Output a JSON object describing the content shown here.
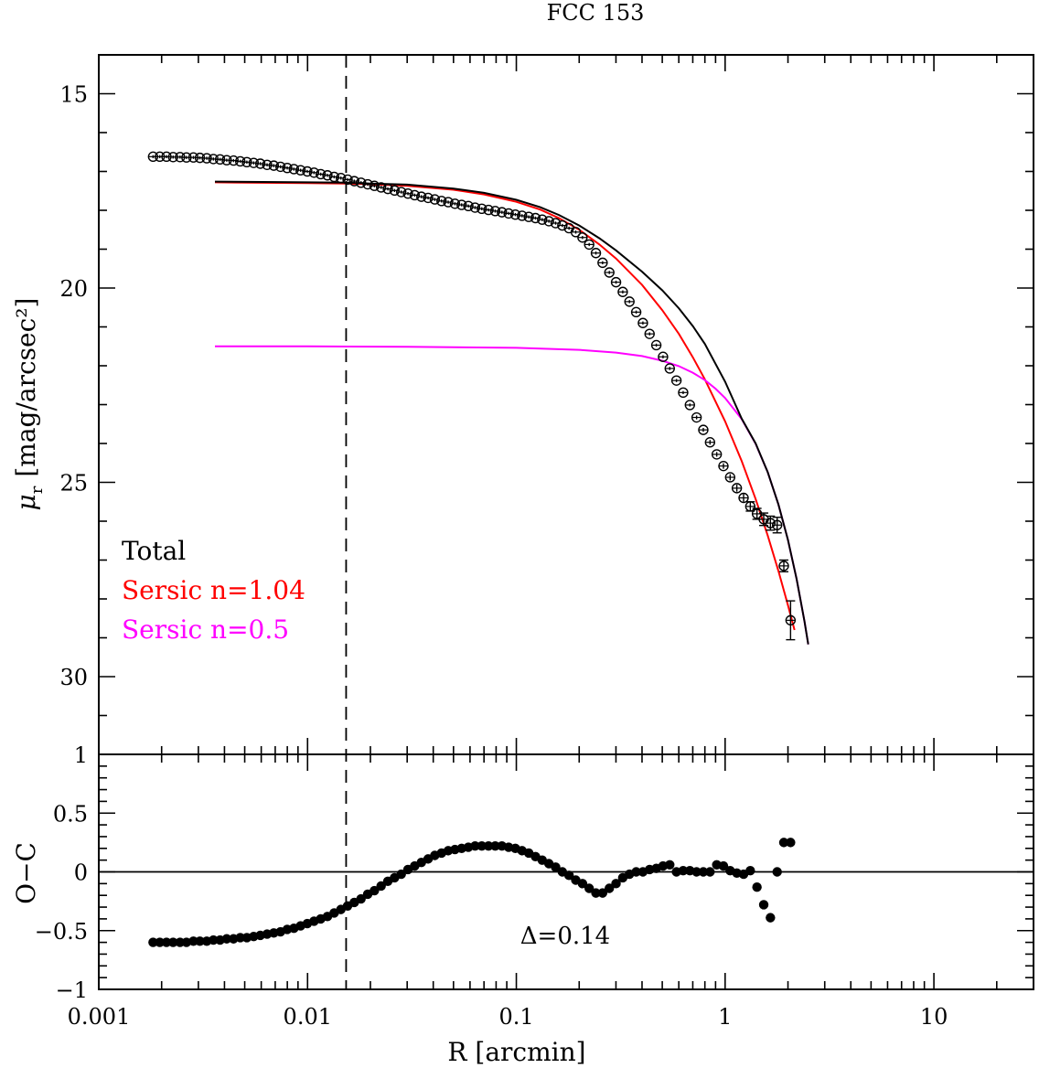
{
  "chart_data": [
    {
      "type": "scatter",
      "title": "FCC 153",
      "xlabel": "R [arcmin]",
      "ylabel": "μ_r [mag/arcsec²]",
      "ylabel_symbol": "μ",
      "ylabel_subscript": "r",
      "ylabel_units": "[mag/arcsec²]",
      "xscale": "log",
      "xlim": [
        0.001,
        30
      ],
      "ylim": [
        32,
        14
      ],
      "y_inverted": true,
      "xtick_labels": [
        "0.001",
        "0.01",
        "0.1",
        "1",
        "10"
      ],
      "ytick_labels": [
        "15",
        "20",
        "25",
        "30"
      ],
      "vline_x": 0.0153,
      "legend": [
        {
          "label": "Total",
          "color": "#000000"
        },
        {
          "label": "Sersic n=1.04",
          "color": "#ff0000"
        },
        {
          "label": "Sersic n=0.5",
          "color": "#ff00ff"
        }
      ],
      "legend_placement": "lower-left",
      "series": [
        {
          "name": "observed profile",
          "marker": "open-circle",
          "color": "#000000",
          "x": [
            0.00182,
            0.00196,
            0.00211,
            0.00227,
            0.00245,
            0.00263,
            0.00284,
            0.00305,
            0.00329,
            0.00354,
            0.00381,
            0.0041,
            0.00442,
            0.00476,
            0.00512,
            0.00552,
            0.00594,
            0.0064,
            0.00689,
            0.00742,
            0.00799,
            0.0086,
            0.00926,
            0.00997,
            0.01074,
            0.01156,
            0.01245,
            0.01341,
            0.01444,
            0.01555,
            0.01674,
            0.01803,
            0.01941,
            0.0209,
            0.02251,
            0.02424,
            0.0261,
            0.0281,
            0.03026,
            0.03259,
            0.03509,
            0.03779,
            0.04069,
            0.04382,
            0.04718,
            0.05081,
            0.05471,
            0.05892,
            0.06344,
            0.06832,
            0.07357,
            0.07922,
            0.08531,
            0.09186,
            0.09892,
            0.1065,
            0.1147,
            0.1235,
            0.133,
            0.1432,
            0.1542,
            0.1661,
            0.1788,
            0.1926,
            0.2074,
            0.2233,
            0.2405,
            0.2589,
            0.2789,
            0.3003,
            0.3234,
            0.3482,
            0.375,
            0.4038,
            0.4348,
            0.4682,
            0.5042,
            0.543,
            0.5847,
            0.6296,
            0.678,
            0.7301,
            0.7862,
            0.8466,
            0.9117,
            0.9817,
            1.057,
            1.138,
            1.226,
            1.32,
            1.421,
            1.531,
            1.648,
            1.775,
            1.911,
            2.058
          ],
          "y": [
            16.62,
            16.62,
            16.62,
            16.63,
            16.63,
            16.64,
            16.64,
            16.65,
            16.66,
            16.68,
            16.69,
            16.71,
            16.72,
            16.74,
            16.76,
            16.78,
            16.8,
            16.83,
            16.85,
            16.88,
            16.91,
            16.94,
            16.97,
            17.0,
            17.03,
            17.07,
            17.1,
            17.14,
            17.17,
            17.21,
            17.25,
            17.29,
            17.33,
            17.37,
            17.41,
            17.45,
            17.49,
            17.53,
            17.57,
            17.61,
            17.65,
            17.68,
            17.72,
            17.76,
            17.79,
            17.83,
            17.86,
            17.89,
            17.93,
            17.96,
            17.99,
            18.02,
            18.05,
            18.08,
            18.11,
            18.14,
            18.17,
            18.2,
            18.24,
            18.28,
            18.33,
            18.39,
            18.46,
            18.56,
            18.7,
            18.88,
            19.1,
            19.35,
            19.6,
            19.85,
            20.1,
            20.35,
            20.62,
            20.9,
            21.18,
            21.47,
            21.77,
            22.07,
            22.38,
            22.69,
            23.01,
            23.33,
            23.65,
            23.97,
            24.28,
            24.58,
            24.87,
            25.15,
            25.4,
            25.62,
            25.81,
            25.95,
            26.05,
            26.1,
            27.15,
            28.55
          ],
          "yerr": [
            0.04,
            0.04,
            0.04,
            0.04,
            0.04,
            0.04,
            0.04,
            0.04,
            0.04,
            0.04,
            0.04,
            0.04,
            0.04,
            0.04,
            0.04,
            0.04,
            0.04,
            0.04,
            0.04,
            0.04,
            0.04,
            0.04,
            0.04,
            0.04,
            0.04,
            0.04,
            0.04,
            0.04,
            0.04,
            0.04,
            0.04,
            0.04,
            0.04,
            0.04,
            0.04,
            0.04,
            0.04,
            0.04,
            0.04,
            0.04,
            0.04,
            0.04,
            0.04,
            0.04,
            0.04,
            0.04,
            0.04,
            0.04,
            0.04,
            0.04,
            0.04,
            0.04,
            0.04,
            0.04,
            0.04,
            0.04,
            0.04,
            0.04,
            0.04,
            0.04,
            0.04,
            0.04,
            0.04,
            0.04,
            0.04,
            0.04,
            0.04,
            0.04,
            0.04,
            0.04,
            0.04,
            0.04,
            0.04,
            0.04,
            0.04,
            0.04,
            0.04,
            0.04,
            0.04,
            0.04,
            0.04,
            0.05,
            0.05,
            0.06,
            0.06,
            0.07,
            0.08,
            0.09,
            0.1,
            0.12,
            0.14,
            0.16,
            0.18,
            0.2,
            0.15,
            0.5
          ]
        },
        {
          "name": "Sersic n=1.04",
          "color": "#ff0000",
          "x": [
            0.0036,
            0.01,
            0.0153,
            0.02,
            0.03,
            0.05,
            0.07,
            0.1,
            0.13,
            0.16,
            0.2,
            0.25,
            0.3,
            0.4,
            0.5,
            0.6,
            0.7,
            0.8,
            1.0,
            1.2,
            1.4,
            1.6,
            1.8,
            2.0,
            2.15
          ],
          "y": [
            17.28,
            17.3,
            17.31,
            17.33,
            17.37,
            17.47,
            17.59,
            17.78,
            17.98,
            18.2,
            18.5,
            18.88,
            19.24,
            19.92,
            20.57,
            21.18,
            21.78,
            22.35,
            23.43,
            24.45,
            25.43,
            26.37,
            27.28,
            28.16,
            28.8
          ]
        },
        {
          "name": "Sersic n=0.5",
          "color": "#ff00ff",
          "x": [
            0.0036,
            0.01,
            0.03,
            0.1,
            0.2,
            0.3,
            0.4,
            0.5,
            0.6,
            0.7,
            0.8,
            0.9,
            1.0,
            1.2,
            1.4,
            1.6,
            1.8,
            2.0,
            2.2,
            2.4,
            2.5
          ],
          "y": [
            21.5,
            21.5,
            21.51,
            21.54,
            21.59,
            21.66,
            21.75,
            21.87,
            22.01,
            22.18,
            22.37,
            22.59,
            22.83,
            23.37,
            24.01,
            24.74,
            25.57,
            26.48,
            27.49,
            28.58,
            29.17
          ]
        },
        {
          "name": "Total",
          "color": "#000000",
          "x": [
            0.0036,
            0.01,
            0.0153,
            0.02,
            0.03,
            0.05,
            0.07,
            0.1,
            0.13,
            0.16,
            0.2,
            0.25,
            0.3,
            0.4,
            0.5,
            0.6,
            0.7,
            0.8,
            1.0,
            1.2,
            1.4,
            1.6,
            1.8,
            2.0,
            2.2,
            2.4,
            2.5
          ],
          "y": [
            17.26,
            17.28,
            17.29,
            17.31,
            17.34,
            17.44,
            17.55,
            17.73,
            17.92,
            18.12,
            18.39,
            18.72,
            19.03,
            19.58,
            20.06,
            20.52,
            20.98,
            21.44,
            22.41,
            23.36,
            24.0,
            24.74,
            25.57,
            26.48,
            27.49,
            28.58,
            29.17
          ]
        }
      ]
    },
    {
      "type": "scatter",
      "xlabel": "R [arcmin]",
      "ylabel": "O−C",
      "xscale": "log",
      "xlim": [
        0.001,
        30
      ],
      "ylim": [
        -1,
        1
      ],
      "ytick_labels": [
        "−1",
        "−0.5",
        "0",
        "0.5",
        "1"
      ],
      "hline_y": 0,
      "vline_x": 0.0153,
      "annotation": "Δ=0.14",
      "series": [
        {
          "name": "residuals",
          "marker": "filled-circle",
          "color": "#000000",
          "x": [
            0.00182,
            0.00196,
            0.00211,
            0.00227,
            0.00245,
            0.00263,
            0.00284,
            0.00305,
            0.00329,
            0.00354,
            0.00381,
            0.0041,
            0.00442,
            0.00476,
            0.00512,
            0.00552,
            0.00594,
            0.0064,
            0.00689,
            0.00742,
            0.00799,
            0.0086,
            0.00926,
            0.00997,
            0.01074,
            0.01156,
            0.01245,
            0.01341,
            0.01444,
            0.01555,
            0.01674,
            0.01803,
            0.01941,
            0.0209,
            0.02251,
            0.02424,
            0.0261,
            0.0281,
            0.03026,
            0.03259,
            0.03509,
            0.03779,
            0.04069,
            0.04382,
            0.04718,
            0.05081,
            0.05471,
            0.05892,
            0.06344,
            0.06832,
            0.07357,
            0.07922,
            0.08531,
            0.09186,
            0.09892,
            0.1065,
            0.1147,
            0.1235,
            0.133,
            0.1432,
            0.1542,
            0.1661,
            0.1788,
            0.1926,
            0.2074,
            0.2233,
            0.2405,
            0.2589,
            0.2789,
            0.3003,
            0.3234,
            0.3482,
            0.375,
            0.4038,
            0.4348,
            0.4682,
            0.5042,
            0.543,
            0.5847,
            0.6296,
            0.678,
            0.7301,
            0.7862,
            0.8466,
            0.9117,
            0.9817,
            1.057,
            1.138,
            1.226,
            1.32,
            1.421,
            1.531,
            1.648,
            1.775,
            1.911,
            2.058
          ],
          "y": [
            -0.6,
            -0.6,
            -0.6,
            -0.6,
            -0.6,
            -0.6,
            -0.59,
            -0.59,
            -0.59,
            -0.58,
            -0.58,
            -0.57,
            -0.57,
            -0.56,
            -0.56,
            -0.55,
            -0.54,
            -0.53,
            -0.52,
            -0.51,
            -0.49,
            -0.48,
            -0.46,
            -0.44,
            -0.42,
            -0.4,
            -0.38,
            -0.35,
            -0.32,
            -0.29,
            -0.26,
            -0.23,
            -0.19,
            -0.16,
            -0.12,
            -0.08,
            -0.05,
            -0.02,
            0.02,
            0.05,
            0.08,
            0.11,
            0.14,
            0.16,
            0.18,
            0.19,
            0.2,
            0.21,
            0.22,
            0.22,
            0.22,
            0.22,
            0.22,
            0.21,
            0.2,
            0.18,
            0.16,
            0.13,
            0.1,
            0.07,
            0.04,
            0.0,
            -0.03,
            -0.07,
            -0.1,
            -0.14,
            -0.18,
            -0.18,
            -0.14,
            -0.1,
            -0.05,
            -0.02,
            0.0,
            0.0,
            0.02,
            0.03,
            0.05,
            0.06,
            0.0,
            0.01,
            0.01,
            0.0,
            0.0,
            0.0,
            0.06,
            0.05,
            0.01,
            -0.01,
            -0.02,
            0.01,
            -0.13,
            -0.28,
            -0.39,
            0.0,
            0.25,
            0.25
          ]
        }
      ]
    }
  ]
}
